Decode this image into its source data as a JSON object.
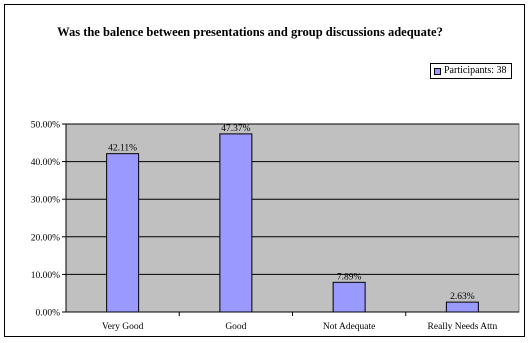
{
  "chart_data": {
    "type": "bar",
    "title": "Was the balence between presentations and group discussions adequate?",
    "categories": [
      "Very Good",
      "Good",
      "Not Adequate",
      "Really Needs Attn"
    ],
    "series": [
      {
        "name": "Participants: 38",
        "values": [
          42.11,
          47.37,
          7.89,
          2.63
        ],
        "color": "#9999ff"
      }
    ],
    "data_labels": [
      "42.11%",
      "47.37%",
      "7.89%",
      "2.63%"
    ],
    "y_ticks": [
      "0.00%",
      "10.00%",
      "20.00%",
      "30.00%",
      "40.00%",
      "50.00%"
    ],
    "ylim": [
      0,
      50
    ],
    "grid": true,
    "plot_background": "#c0c0c0",
    "legend_position": "top-right"
  }
}
